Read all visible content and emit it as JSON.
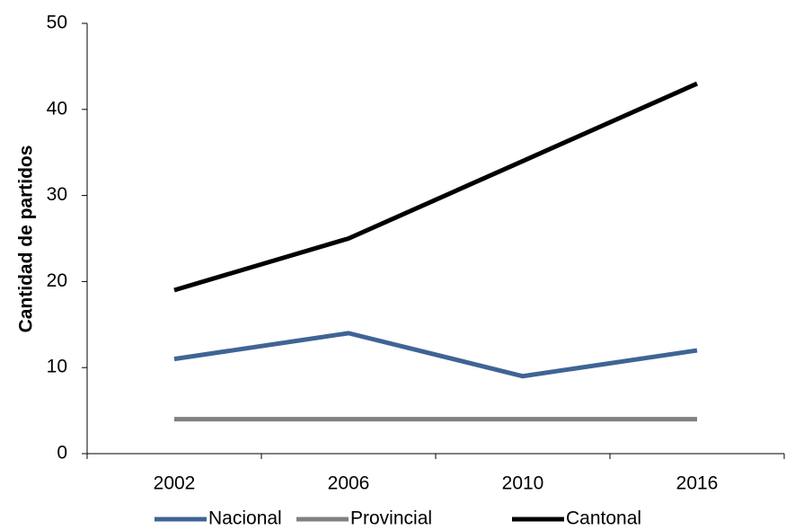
{
  "chart_data": {
    "type": "line",
    "y_label": "Cantidad de partidos",
    "categories": [
      "2002",
      "2006",
      "2010",
      "2016"
    ],
    "series": [
      {
        "name": "Nacional",
        "color": "#3f6495",
        "values": [
          11,
          14,
          9,
          12
        ]
      },
      {
        "name": "Provincial",
        "color": "#808080",
        "values": [
          4,
          4,
          4,
          4
        ]
      },
      {
        "name": "Cantonal",
        "color": "#000000",
        "values": [
          19,
          25,
          34,
          43
        ]
      }
    ],
    "ylim": [
      0,
      50
    ],
    "yticks": [
      0,
      10,
      20,
      30,
      40,
      50
    ],
    "legend": "bottom"
  }
}
